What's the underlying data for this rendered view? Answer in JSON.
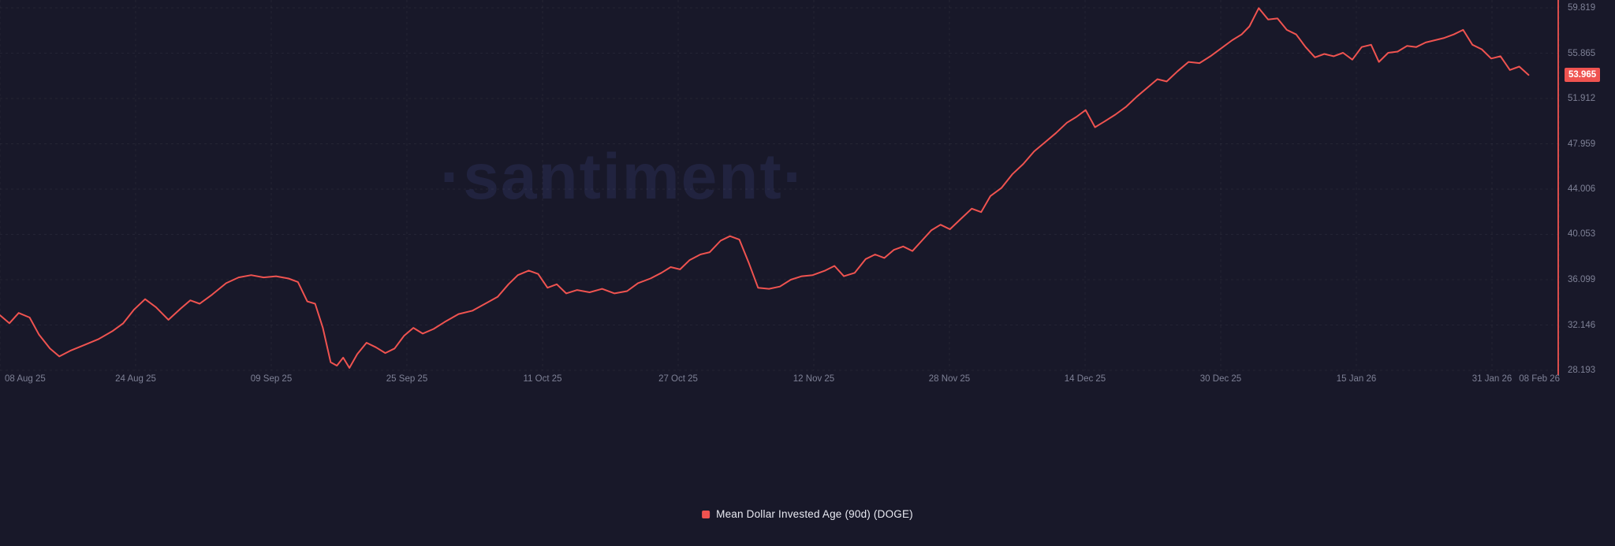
{
  "watermark": "·santiment·",
  "legend": {
    "label": "Mean Dollar Invested Age (90d) (DOGE)",
    "color": "#ef5350"
  },
  "badge": {
    "value": "53.965",
    "bg": "#ef5350"
  },
  "axis": {
    "x_labels": [
      "08 Aug 25",
      "24 Aug 25",
      "09 Sep 25",
      "25 Sep 25",
      "11 Oct 25",
      "27 Oct 25",
      "12 Nov 25",
      "28 Nov 25",
      "14 Dec 25",
      "30 Dec 25",
      "15 Jan 26",
      "31 Jan 26",
      "08 Feb 26"
    ],
    "y_ticks": [
      "59.819",
      "55.865",
      "51.912",
      "47.959",
      "44.006",
      "40.053",
      "36.099",
      "32.146",
      "28.193"
    ]
  },
  "chart_data": {
    "type": "line",
    "title": "Mean Dollar Invested Age (90d) (DOGE)",
    "xlabel": "",
    "ylabel": "",
    "ylim": [
      28.193,
      59.819
    ],
    "grid": true,
    "legend_position": "bottom",
    "background": "#181829",
    "x_tick_days": [
      0,
      16,
      32,
      48,
      64,
      80,
      96,
      112,
      128,
      144,
      160,
      176,
      184
    ],
    "x_total_days": 184,
    "current_value": 53.965,
    "series": [
      {
        "name": "Mean Dollar Invested Age (90d) (DOGE)",
        "color": "#ef5350",
        "points": [
          [
            0,
            33.0
          ],
          [
            0.6,
            32.3
          ],
          [
            1.2,
            33.2
          ],
          [
            1.9,
            32.8
          ],
          [
            2.5,
            31.3
          ],
          [
            3.2,
            30.1
          ],
          [
            3.8,
            29.4
          ],
          [
            4.5,
            29.9
          ],
          [
            5.4,
            30.4
          ],
          [
            6.3,
            30.9
          ],
          [
            7.2,
            31.6
          ],
          [
            7.9,
            32.3
          ],
          [
            8.6,
            33.5
          ],
          [
            9.3,
            34.4
          ],
          [
            10.0,
            33.7
          ],
          [
            10.8,
            32.6
          ],
          [
            11.6,
            33.6
          ],
          [
            12.2,
            34.3
          ],
          [
            12.8,
            34.0
          ],
          [
            13.6,
            34.8
          ],
          [
            14.5,
            35.8
          ],
          [
            15.3,
            36.3
          ],
          [
            16.1,
            36.5
          ],
          [
            16.9,
            36.3
          ],
          [
            17.7,
            36.4
          ],
          [
            18.5,
            36.2
          ],
          [
            19.1,
            35.9
          ],
          [
            19.7,
            34.2
          ],
          [
            20.2,
            34.0
          ],
          [
            20.7,
            31.9
          ],
          [
            21.2,
            28.9
          ],
          [
            21.6,
            28.6
          ],
          [
            22.0,
            29.3
          ],
          [
            22.4,
            28.4
          ],
          [
            22.9,
            29.6
          ],
          [
            23.5,
            30.6
          ],
          [
            24.1,
            30.2
          ],
          [
            24.7,
            29.7
          ],
          [
            25.3,
            30.1
          ],
          [
            25.9,
            31.2
          ],
          [
            26.5,
            31.9
          ],
          [
            27.1,
            31.4
          ],
          [
            27.8,
            31.8
          ],
          [
            28.5,
            32.4
          ],
          [
            29.4,
            33.1
          ],
          [
            30.3,
            33.4
          ],
          [
            31.1,
            34.0
          ],
          [
            31.9,
            34.6
          ],
          [
            32.6,
            35.7
          ],
          [
            33.2,
            36.5
          ],
          [
            33.9,
            36.9
          ],
          [
            34.5,
            36.6
          ],
          [
            35.1,
            35.4
          ],
          [
            35.7,
            35.7
          ],
          [
            36.3,
            34.9
          ],
          [
            37.0,
            35.2
          ],
          [
            37.8,
            35.0
          ],
          [
            38.6,
            35.3
          ],
          [
            39.4,
            34.9
          ],
          [
            40.2,
            35.1
          ],
          [
            40.9,
            35.8
          ],
          [
            41.7,
            36.2
          ],
          [
            42.4,
            36.7
          ],
          [
            43.0,
            37.2
          ],
          [
            43.6,
            37.0
          ],
          [
            44.2,
            37.8
          ],
          [
            44.9,
            38.3
          ],
          [
            45.5,
            38.5
          ],
          [
            46.2,
            39.5
          ],
          [
            46.8,
            39.9
          ],
          [
            47.4,
            39.6
          ],
          [
            48.0,
            37.6
          ],
          [
            48.6,
            35.4
          ],
          [
            49.3,
            35.3
          ],
          [
            50.0,
            35.5
          ],
          [
            50.7,
            36.1
          ],
          [
            51.4,
            36.4
          ],
          [
            52.1,
            36.5
          ],
          [
            52.9,
            36.9
          ],
          [
            53.5,
            37.3
          ],
          [
            54.1,
            36.4
          ],
          [
            54.8,
            36.7
          ],
          [
            55.5,
            37.9
          ],
          [
            56.1,
            38.3
          ],
          [
            56.7,
            38.0
          ],
          [
            57.3,
            38.7
          ],
          [
            57.9,
            39.0
          ],
          [
            58.5,
            38.6
          ],
          [
            59.1,
            39.5
          ],
          [
            59.7,
            40.4
          ],
          [
            60.3,
            40.9
          ],
          [
            60.9,
            40.5
          ],
          [
            61.6,
            41.4
          ],
          [
            62.3,
            42.3
          ],
          [
            62.9,
            42.0
          ],
          [
            63.5,
            43.4
          ],
          [
            64.2,
            44.1
          ],
          [
            64.9,
            45.3
          ],
          [
            65.6,
            46.2
          ],
          [
            66.3,
            47.3
          ],
          [
            67.0,
            48.1
          ],
          [
            67.7,
            48.9
          ],
          [
            68.4,
            49.8
          ],
          [
            69.0,
            50.3
          ],
          [
            69.6,
            50.9
          ],
          [
            70.2,
            49.4
          ],
          [
            70.8,
            49.9
          ],
          [
            71.5,
            50.5
          ],
          [
            72.2,
            51.2
          ],
          [
            72.9,
            52.1
          ],
          [
            73.6,
            52.9
          ],
          [
            74.2,
            53.6
          ],
          [
            74.8,
            53.4
          ],
          [
            75.5,
            54.3
          ],
          [
            76.2,
            55.1
          ],
          [
            76.9,
            55.0
          ],
          [
            77.6,
            55.6
          ],
          [
            78.3,
            56.3
          ],
          [
            79.0,
            57.0
          ],
          [
            79.6,
            57.5
          ],
          [
            80.1,
            58.2
          ],
          [
            80.7,
            59.8
          ],
          [
            81.3,
            58.8
          ],
          [
            81.9,
            58.9
          ],
          [
            82.5,
            57.9
          ],
          [
            83.1,
            57.5
          ],
          [
            83.7,
            56.4
          ],
          [
            84.3,
            55.5
          ],
          [
            84.9,
            55.8
          ],
          [
            85.5,
            55.6
          ],
          [
            86.1,
            55.9
          ],
          [
            86.7,
            55.3
          ],
          [
            87.3,
            56.4
          ],
          [
            87.9,
            56.6
          ],
          [
            88.4,
            55.1
          ],
          [
            89.0,
            55.9
          ],
          [
            89.6,
            56.0
          ],
          [
            90.2,
            56.5
          ],
          [
            90.8,
            56.4
          ],
          [
            91.4,
            56.8
          ],
          [
            92.0,
            57.0
          ],
          [
            92.6,
            57.2
          ],
          [
            93.2,
            57.5
          ],
          [
            93.8,
            57.9
          ],
          [
            94.4,
            56.6
          ],
          [
            95.0,
            56.2
          ],
          [
            95.6,
            55.4
          ],
          [
            96.2,
            55.6
          ],
          [
            96.8,
            54.4
          ],
          [
            97.4,
            54.7
          ],
          [
            98.0,
            53.965
          ]
        ]
      }
    ]
  }
}
